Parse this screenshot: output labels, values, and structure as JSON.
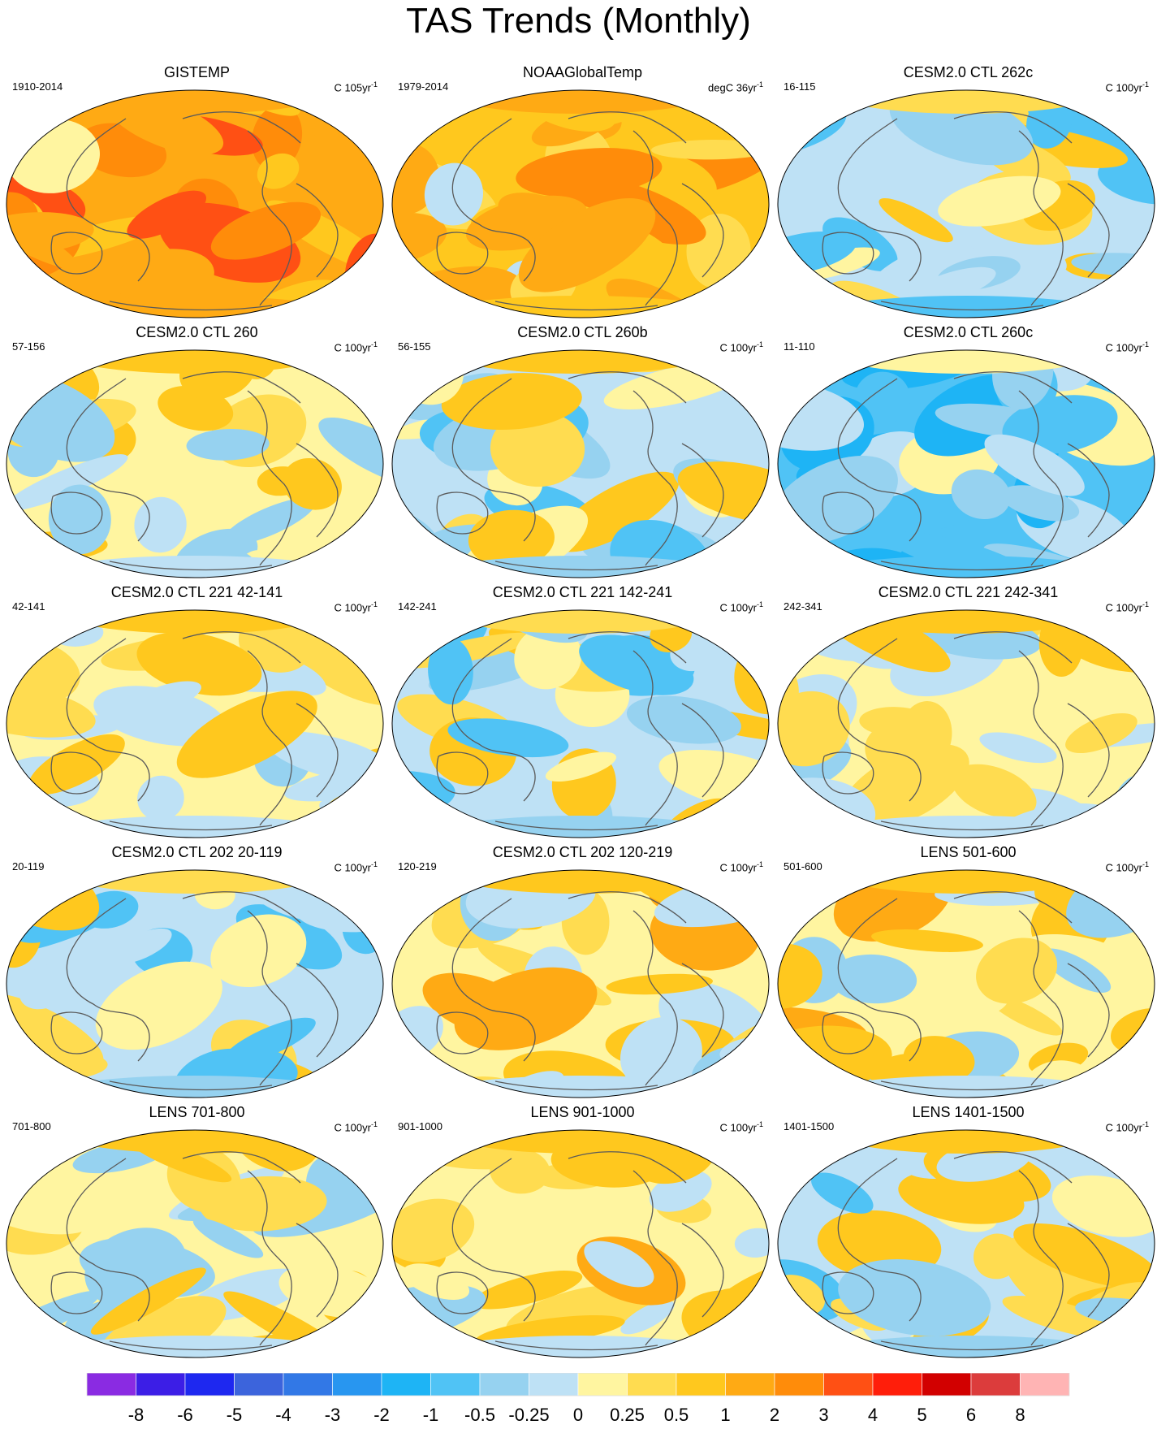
{
  "title": "TAS Trends (Monthly)",
  "chart_data": {
    "type": "map-panels",
    "projection": "Robinson (Pacific-centered)",
    "panels": [
      {
        "title": "GISTEMP",
        "years": "1910-2014",
        "units": "C 105yr",
        "exponent": "-1",
        "mean_trend_class": 1.3
      },
      {
        "title": "NOAAGlobalTemp",
        "years": "1979-2014",
        "units": "degC 36yr",
        "exponent": "-1",
        "mean_trend_class": 0.9
      },
      {
        "title": "CESM2.0 CTL 262c",
        "years": "16-115",
        "units": "C 100yr",
        "exponent": "-1",
        "mean_trend_class": -0.25
      },
      {
        "title": "CESM2.0 CTL 260",
        "years": "57-156",
        "units": "C 100yr",
        "exponent": "-1",
        "mean_trend_class": 0.05
      },
      {
        "title": "CESM2.0 CTL 260b",
        "years": "56-155",
        "units": "C 100yr",
        "exponent": "-1",
        "mean_trend_class": -0.1
      },
      {
        "title": "CESM2.0 CTL 260c",
        "years": "11-110",
        "units": "C 100yr",
        "exponent": "-1",
        "mean_trend_class": -0.6
      },
      {
        "title": "CESM2.0 CTL 221 42-141",
        "years": "42-141",
        "units": "C 100yr",
        "exponent": "-1",
        "mean_trend_class": 0.1
      },
      {
        "title": "CESM2.0 CTL 221 142-241",
        "years": "142-241",
        "units": "C 100yr",
        "exponent": "-1",
        "mean_trend_class": -0.2
      },
      {
        "title": "CESM2.0 CTL 221 242-341",
        "years": "242-341",
        "units": "C 100yr",
        "exponent": "-1",
        "mean_trend_class": 0.15
      },
      {
        "title": "CESM2.0 CTL 202 20-119",
        "years": "20-119",
        "units": "C 100yr",
        "exponent": "-1",
        "mean_trend_class": -0.2
      },
      {
        "title": "CESM2.0 CTL 202 120-219",
        "years": "120-219",
        "units": "C 100yr",
        "exponent": "-1",
        "mean_trend_class": 0.12
      },
      {
        "title": "LENS 501-600",
        "years": "501-600",
        "units": "C 100yr",
        "exponent": "-1",
        "mean_trend_class": 0.2
      },
      {
        "title": "LENS 701-800",
        "years": "701-800",
        "units": "C 100yr",
        "exponent": "-1",
        "mean_trend_class": 0.05
      },
      {
        "title": "LENS 901-1000",
        "years": "901-1000",
        "units": "C 100yr",
        "exponent": "-1",
        "mean_trend_class": 0.2
      },
      {
        "title": "LENS 1401-1500",
        "years": "1401-1500",
        "units": "C 100yr",
        "exponent": "-1",
        "mean_trend_class": -0.05
      }
    ],
    "colorbar": {
      "labels": [
        "-8",
        "-6",
        "-5",
        "-4",
        "-3",
        "-2",
        "-1",
        "-0.5",
        "-0.25",
        "0",
        "0.25",
        "0.5",
        "1",
        "2",
        "3",
        "4",
        "5",
        "6",
        "8"
      ],
      "colors": [
        "#8a2be2",
        "#3c1ee6",
        "#1e28f0",
        "#3c64dc",
        "#3278e6",
        "#2896f0",
        "#1eb4f5",
        "#50c3f5",
        "#96d2f0",
        "#bee1f5",
        "#fff5a0",
        "#ffdc50",
        "#ffc81e",
        "#ffaa14",
        "#ff8c0a",
        "#ff5014",
        "#ff1e0a",
        "#d20000",
        "#dc3c3c",
        "#ffb4b4"
      ]
    }
  }
}
